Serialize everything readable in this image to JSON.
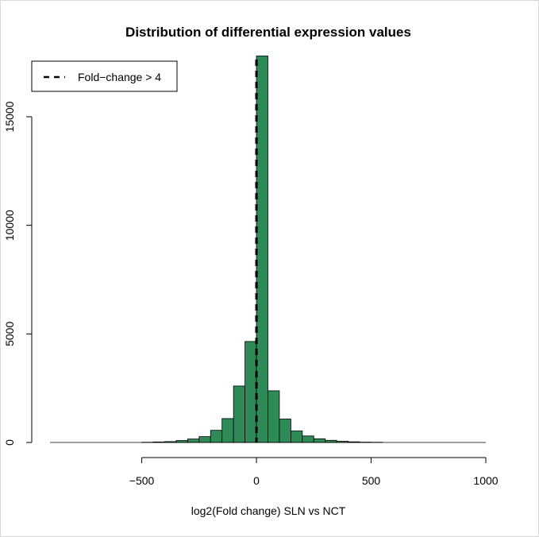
{
  "chart_data": {
    "type": "bar",
    "subtype": "histogram",
    "title": "Distribution of differential expression values",
    "xlabel": "log2(Fold change) SLN vs NCT",
    "ylabel": "",
    "xlim": [
      -900,
      1000
    ],
    "ylim": [
      0,
      18000
    ],
    "x_ticks": [
      -500,
      0,
      500,
      1000
    ],
    "x_tick_labels": [
      "−500",
      "0",
      "500",
      "1000"
    ],
    "y_ticks": [
      0,
      5000,
      10000,
      15000
    ],
    "y_tick_labels": [
      "0",
      "5000",
      "10000",
      "15000"
    ],
    "bin_width": 50,
    "bar_color": "#2e8b57",
    "bins": [
      {
        "x0": -900,
        "x1": -850,
        "count": 0
      },
      {
        "x0": -850,
        "x1": -800,
        "count": 0
      },
      {
        "x0": -800,
        "x1": -750,
        "count": 0
      },
      {
        "x0": -750,
        "x1": -700,
        "count": 0
      },
      {
        "x0": -700,
        "x1": -650,
        "count": 0
      },
      {
        "x0": -650,
        "x1": -600,
        "count": 0
      },
      {
        "x0": -600,
        "x1": -550,
        "count": 0
      },
      {
        "x0": -550,
        "x1": -500,
        "count": 0
      },
      {
        "x0": -500,
        "x1": -450,
        "count": 10
      },
      {
        "x0": -450,
        "x1": -400,
        "count": 25
      },
      {
        "x0": -400,
        "x1": -350,
        "count": 40
      },
      {
        "x0": -350,
        "x1": -300,
        "count": 90
      },
      {
        "x0": -300,
        "x1": -250,
        "count": 160
      },
      {
        "x0": -250,
        "x1": -200,
        "count": 270
      },
      {
        "x0": -200,
        "x1": -150,
        "count": 560
      },
      {
        "x0": -150,
        "x1": -100,
        "count": 1100
      },
      {
        "x0": -100,
        "x1": -50,
        "count": 2600
      },
      {
        "x0": -50,
        "x1": 0,
        "count": 4650
      },
      {
        "x0": 0,
        "x1": 50,
        "count": 17800
      },
      {
        "x0": 50,
        "x1": 100,
        "count": 2380
      },
      {
        "x0": 100,
        "x1": 150,
        "count": 1080
      },
      {
        "x0": 150,
        "x1": 200,
        "count": 530
      },
      {
        "x0": 200,
        "x1": 250,
        "count": 300
      },
      {
        "x0": 250,
        "x1": 300,
        "count": 170
      },
      {
        "x0": 300,
        "x1": 350,
        "count": 100
      },
      {
        "x0": 350,
        "x1": 400,
        "count": 55
      },
      {
        "x0": 400,
        "x1": 450,
        "count": 30
      },
      {
        "x0": 450,
        "x1": 500,
        "count": 15
      },
      {
        "x0": 500,
        "x1": 550,
        "count": 10
      },
      {
        "x0": 550,
        "x1": 600,
        "count": 0
      },
      {
        "x0": 600,
        "x1": 650,
        "count": 0
      },
      {
        "x0": 650,
        "x1": 700,
        "count": 0
      },
      {
        "x0": 700,
        "x1": 750,
        "count": 0
      },
      {
        "x0": 750,
        "x1": 800,
        "count": 0
      },
      {
        "x0": 800,
        "x1": 850,
        "count": 0
      },
      {
        "x0": 850,
        "x1": 900,
        "count": 0
      },
      {
        "x0": 900,
        "x1": 950,
        "count": 0
      },
      {
        "x0": 950,
        "x1": 1000,
        "count": 0
      }
    ],
    "reference_line": {
      "x": 0,
      "style": "dashed",
      "color": "#000000"
    },
    "legend": {
      "position": "top-left",
      "entries": [
        {
          "label": "Fold−change > 4",
          "line_style": "dashed",
          "color": "#000000"
        }
      ]
    },
    "grid": false
  }
}
